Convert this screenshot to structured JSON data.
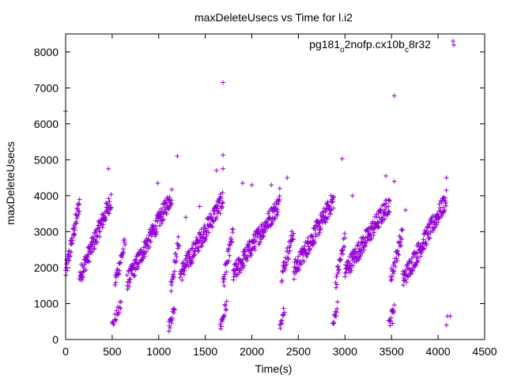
{
  "chart_data": {
    "type": "scatter",
    "title": "maxDeleteUsecs vs Time for l.i2",
    "xlabel": "Time(s)",
    "ylabel": "maxDeleteUsecs",
    "xlim": [
      0,
      4500
    ],
    "ylim": [
      0,
      8500
    ],
    "xticks": [
      0,
      500,
      1000,
      1500,
      2000,
      2500,
      3000,
      3500,
      4000,
      4500
    ],
    "yticks": [
      0,
      1000,
      2000,
      3000,
      4000,
      5000,
      6000,
      7000,
      8000
    ],
    "grid": false,
    "legend_placement": "top-right",
    "marker": "+",
    "color": "#9400d3",
    "series": [
      {
        "legend_parts": [
          "pg181",
          "o",
          "2nofp.cx10b",
          "c",
          "8r32"
        ],
        "segments": [
          {
            "x0": 0,
            "x1": 150,
            "y0": 1850,
            "y1": 3800,
            "step": 3,
            "spread": 250
          },
          {
            "x0": 150,
            "x1": 490,
            "y0": 1750,
            "y1": 3900,
            "step": 3,
            "spread": 260
          },
          {
            "x0": 500,
            "x1": 600,
            "y0": 400,
            "y1": 1000,
            "step": 6,
            "spread": 150
          },
          {
            "x0": 530,
            "x1": 640,
            "y0": 1600,
            "y1": 2700,
            "step": 4,
            "spread": 220
          },
          {
            "x0": 660,
            "x1": 1140,
            "y0": 1600,
            "y1": 4000,
            "step": 3,
            "spread": 250
          },
          {
            "x0": 1110,
            "x1": 1170,
            "y0": 350,
            "y1": 900,
            "step": 4,
            "spread": 150
          },
          {
            "x0": 1130,
            "x1": 1220,
            "y0": 1500,
            "y1": 2800,
            "step": 4,
            "spread": 220
          },
          {
            "x0": 1230,
            "x1": 1690,
            "y0": 1800,
            "y1": 3900,
            "step": 3,
            "spread": 260
          },
          {
            "x0": 1660,
            "x1": 1730,
            "y0": 350,
            "y1": 1000,
            "step": 5,
            "spread": 180
          },
          {
            "x0": 1690,
            "x1": 1800,
            "y0": 1550,
            "y1": 3000,
            "step": 4,
            "spread": 220
          },
          {
            "x0": 1800,
            "x1": 2300,
            "y0": 1800,
            "y1": 3800,
            "step": 3,
            "spread": 260
          },
          {
            "x0": 2300,
            "x1": 2350,
            "y0": 400,
            "y1": 900,
            "step": 5,
            "spread": 150
          },
          {
            "x0": 2320,
            "x1": 2450,
            "y0": 1800,
            "y1": 3000,
            "step": 4,
            "spread": 230
          },
          {
            "x0": 2450,
            "x1": 2880,
            "y0": 1900,
            "y1": 3900,
            "step": 3,
            "spread": 260
          },
          {
            "x0": 2870,
            "x1": 2920,
            "y0": 400,
            "y1": 950,
            "step": 5,
            "spread": 150
          },
          {
            "x0": 2900,
            "x1": 3000,
            "y0": 1600,
            "y1": 2800,
            "step": 4,
            "spread": 220
          },
          {
            "x0": 3000,
            "x1": 3480,
            "y0": 1900,
            "y1": 3800,
            "step": 3,
            "spread": 260
          },
          {
            "x0": 3470,
            "x1": 3530,
            "y0": 400,
            "y1": 950,
            "step": 5,
            "spread": 150
          },
          {
            "x0": 3490,
            "x1": 3620,
            "y0": 1700,
            "y1": 3000,
            "step": 4,
            "spread": 230
          },
          {
            "x0": 3620,
            "x1": 4090,
            "y0": 1650,
            "y1": 3900,
            "step": 3,
            "spread": 260
          }
        ],
        "points": [
          [
            0,
            6350
          ],
          [
            1690,
            7150
          ],
          [
            3530,
            6780
          ],
          [
            4160,
            8300
          ],
          [
            2970,
            5030
          ],
          [
            1200,
            5100
          ],
          [
            460,
            4750
          ],
          [
            1690,
            5130
          ],
          [
            1690,
            4750
          ],
          [
            1620,
            4700
          ],
          [
            2380,
            4500
          ],
          [
            4090,
            4500
          ],
          [
            3440,
            4550
          ],
          [
            990,
            4350
          ],
          [
            1900,
            4350
          ],
          [
            2000,
            4300
          ],
          [
            2210,
            4300
          ],
          [
            2300,
            4200
          ],
          [
            3080,
            4000
          ],
          [
            3530,
            4400
          ],
          [
            3650,
            3600
          ],
          [
            1440,
            3700
          ],
          [
            1290,
            3400
          ],
          [
            4100,
            650
          ],
          [
            4130,
            650
          ],
          [
            4090,
            400
          ],
          [
            1110,
            500
          ],
          [
            1680,
            500
          ],
          [
            3510,
            450
          ],
          [
            2880,
            450
          ]
        ]
      }
    ]
  }
}
